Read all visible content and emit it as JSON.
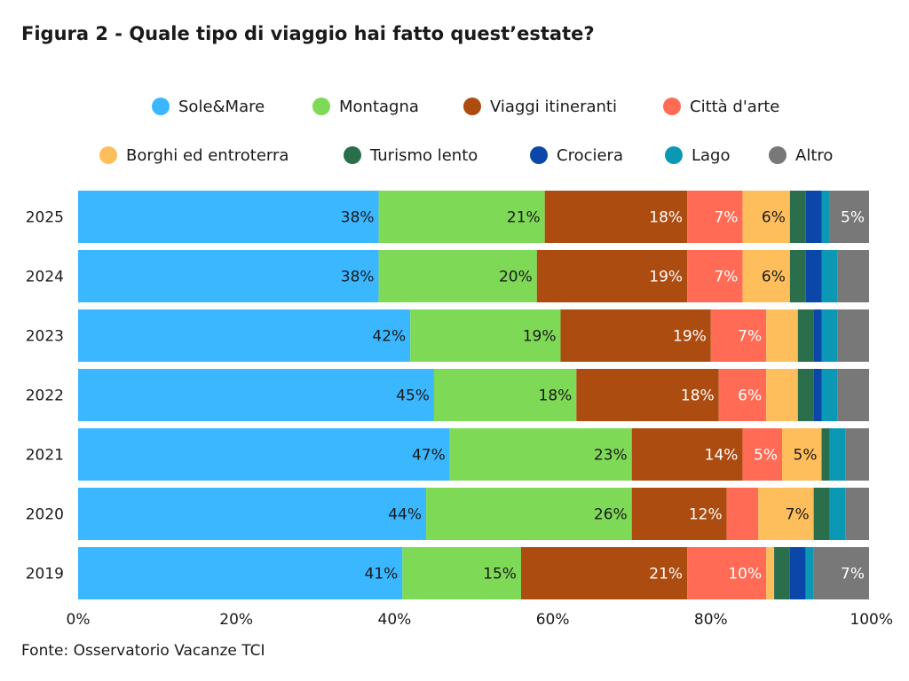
{
  "chart_data": {
    "type": "bar",
    "orientation": "horizontal",
    "stacked": true,
    "title": "Figura 2 - Quale tipo di viaggio hai fatto quest’estate?",
    "source": "Fonte: Osservatorio Vacanze TCI",
    "categories": [
      "2025",
      "2024",
      "2023",
      "2022",
      "2021",
      "2020",
      "2019"
    ],
    "xlim": [
      0,
      100
    ],
    "x_ticks": [
      "0%",
      "20%",
      "40%",
      "60%",
      "80%",
      "100%"
    ],
    "grid": false,
    "legend_position": "top",
    "series": [
      {
        "name": "Sole&Mare",
        "color": "#3bb7ff",
        "label_color": "#1a1a1a",
        "values": [
          38,
          38,
          42,
          45,
          47,
          44,
          41
        ],
        "labels": [
          "38%",
          "38%",
          "42%",
          "45%",
          "47%",
          "44%",
          "41%"
        ]
      },
      {
        "name": "Montagna",
        "color": "#7ed957",
        "label_color": "#1a1a1a",
        "values": [
          21,
          20,
          19,
          18,
          23,
          26,
          15
        ],
        "labels": [
          "21%",
          "20%",
          "19%",
          "18%",
          "23%",
          "26%",
          "15%"
        ]
      },
      {
        "name": "Viaggi itineranti",
        "color": "#ad4c11",
        "label_color": "#ffffff",
        "values": [
          18,
          19,
          19,
          18,
          14,
          12,
          21
        ],
        "labels": [
          "18%",
          "19%",
          "19%",
          "18%",
          "14%",
          "12%",
          "21%"
        ]
      },
      {
        "name": "Città d'arte",
        "color": "#ff6b55",
        "label_color": "#ffffff",
        "values": [
          7,
          7,
          7,
          6,
          5,
          4,
          10
        ],
        "labels": [
          "7%",
          "7%",
          "7%",
          "6%",
          "5%",
          "",
          "10%"
        ]
      },
      {
        "name": "Borghi ed entroterra",
        "color": "#ffbe5c",
        "label_color": "#1a1a1a",
        "values": [
          6,
          6,
          4,
          4,
          5,
          7,
          1
        ],
        "labels": [
          "6%",
          "6%",
          "",
          "",
          "5%",
          "7%",
          ""
        ]
      },
      {
        "name": "Turismo lento",
        "color": "#2a6e4c",
        "label_color": "#ffffff",
        "values": [
          2,
          2,
          2,
          2,
          1,
          2,
          2
        ],
        "labels": [
          "",
          "",
          "",
          "",
          "",
          "",
          ""
        ]
      },
      {
        "name": "Crociera",
        "color": "#0a47a8",
        "label_color": "#ffffff",
        "values": [
          2,
          2,
          1,
          1,
          0,
          0,
          2
        ],
        "labels": [
          "",
          "",
          "",
          "",
          "",
          "",
          ""
        ]
      },
      {
        "name": "Lago",
        "color": "#0b98b5",
        "label_color": "#ffffff",
        "values": [
          1,
          2,
          2,
          2,
          2,
          2,
          1
        ],
        "labels": [
          "",
          "",
          "",
          "",
          "",
          "",
          ""
        ]
      },
      {
        "name": "Altro",
        "color": "#787878",
        "label_color": "#ffffff",
        "values": [
          5,
          4,
          4,
          4,
          3,
          3,
          7
        ],
        "labels": [
          "5%",
          "",
          "",
          "",
          "",
          "",
          "7%"
        ]
      }
    ]
  }
}
